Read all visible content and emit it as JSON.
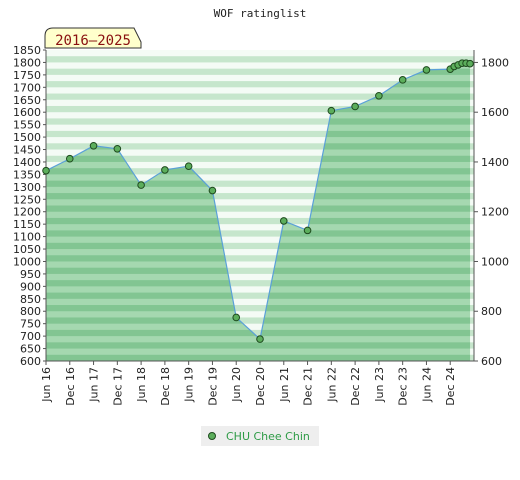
{
  "chart_data": {
    "type": "area",
    "title": "WOF ratinglist",
    "period_badge": "2016–2025",
    "series": [
      {
        "name": "CHU Chee Chin",
        "values": [
          1365,
          1413,
          1465,
          1453,
          1307,
          1368,
          1383,
          1285,
          775,
          688,
          1163,
          1125,
          1606,
          1623,
          1666,
          1730,
          1770,
          1773,
          1784,
          1790,
          1797,
          1797,
          1795
        ]
      }
    ],
    "x_month_index": [
      0,
      6,
      12,
      18,
      24,
      30,
      36,
      42,
      48,
      54,
      60,
      66,
      72,
      78,
      84,
      90,
      96,
      102,
      103,
      104,
      105,
      106,
      107
    ],
    "x_tick_labels": [
      "Jun 16",
      "Dec 16",
      "Jun 17",
      "Dec 17",
      "Jun 18",
      "Dec 18",
      "Jun 19",
      "Dec 19",
      "Jun 20",
      "Dec 20",
      "Jun 21",
      "Dec 21",
      "Jun 22",
      "Dec 22",
      "Jun 23",
      "Dec 23",
      "Jun 24",
      "Dec 24"
    ],
    "y_left": {
      "min": 600,
      "max": 1850,
      "step": 50,
      "tick_labels": [
        "600",
        "650",
        "700",
        "750",
        "800",
        "850",
        "900",
        "950",
        "1000",
        "1050",
        "1100",
        "1150",
        "1200",
        "1250",
        "1300",
        "1350",
        "1400",
        "1450",
        "1500",
        "1550",
        "1600",
        "1650",
        "1700",
        "1750",
        "1800",
        "1850"
      ]
    },
    "y_right": {
      "min": 600,
      "max": 1800,
      "step": 200,
      "tick_labels": [
        "600",
        "800",
        "1000",
        "1200",
        "1400",
        "1600",
        "1800"
      ]
    },
    "ylim": [
      600,
      1850
    ],
    "legend_position": "bottom-center",
    "grid": true,
    "colors": {
      "line": "#5aa0d8",
      "marker_fill": "#5cae5c",
      "marker_edge": "#1e4a1e",
      "area_dark": "#82c592",
      "area_light": "#a5d8b0",
      "bg_dark": "#c6e6cc",
      "bg_light": "#f4fbf5",
      "badge_bg": "#ffffcc",
      "badge_text": "#8a1010",
      "legend_bg": "#eeeeee"
    }
  }
}
